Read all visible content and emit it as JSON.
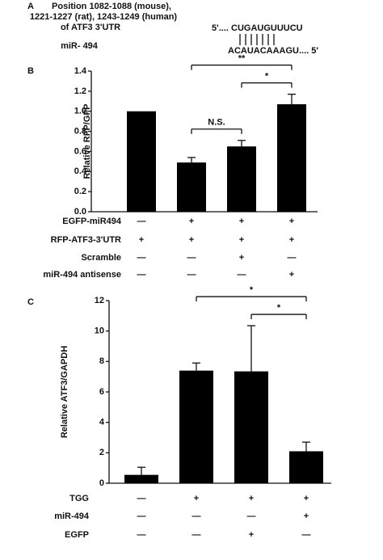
{
  "panel_a": {
    "label": "A",
    "lines": [
      "Position 1082-1088 (mouse),",
      "1221-1227 (rat), 1243-1249 (human)",
      "of ATF3 3'UTR"
    ],
    "mirna": "miR- 494",
    "target_seq": "5'.... CUGAUGUUUCU",
    "mirna_seq": "ACAUACAAAGU.... 5'"
  },
  "chart_data": [
    {
      "type": "bar",
      "panel_label": "B",
      "ylabel": "Relative RFP/GFP",
      "categories": [
        null,
        null,
        null,
        null
      ],
      "values": [
        1.0,
        0.49,
        0.65,
        1.07
      ],
      "errors": [
        0,
        0.05,
        0.06,
        0.1
      ],
      "color": "#000000",
      "ylim": [
        0,
        1.4
      ],
      "yticks": [
        {
          "value": 0,
          "label": "0.0"
        },
        0.2,
        0.4,
        0.6,
        0.8,
        {
          "value": 1,
          "label": "1.0"
        },
        1.2,
        1.4
      ],
      "annotations": [
        {
          "text": "N.S.",
          "between": [
            1,
            2
          ]
        },
        {
          "text": "*",
          "between": [
            2,
            3
          ]
        },
        {
          "text": "**",
          "between": [
            1,
            3
          ]
        }
      ],
      "conditions": [
        {
          "name": "EGFP-miR494",
          "values": [
            "—",
            "+",
            "+",
            "+"
          ]
        },
        {
          "name": "RFP-ATF3-3'UTR",
          "values": [
            "+",
            "+",
            "+",
            "+"
          ]
        },
        {
          "name": "Scramble",
          "values": [
            "—",
            "—",
            "+",
            "—"
          ]
        },
        {
          "name": "miR-494 antisense",
          "values": [
            "—",
            "—",
            "—",
            "+"
          ]
        }
      ]
    },
    {
      "type": "bar",
      "panel_label": "C",
      "ylabel": "Relative ATF3/GAPDH",
      "categories": [
        null,
        null,
        null,
        null
      ],
      "values": [
        0.55,
        7.4,
        7.35,
        2.1
      ],
      "errors": [
        0.5,
        0.5,
        3.0,
        0.6
      ],
      "color": "#000000",
      "ylim": [
        0,
        12
      ],
      "yticks": [
        0,
        2,
        4,
        6,
        8,
        10,
        12
      ],
      "annotations": [
        {
          "text": "*",
          "between": [
            2,
            3
          ]
        },
        {
          "text": "*",
          "between": [
            1,
            3
          ]
        }
      ],
      "conditions": [
        {
          "name": "TGG",
          "values": [
            "—",
            "+",
            "+",
            "+"
          ]
        },
        {
          "name": "miR-494",
          "values": [
            "—",
            "—",
            "—",
            "+"
          ]
        },
        {
          "name": "EGFP",
          "values": [
            "—",
            "—",
            "+",
            "—"
          ]
        }
      ]
    }
  ]
}
